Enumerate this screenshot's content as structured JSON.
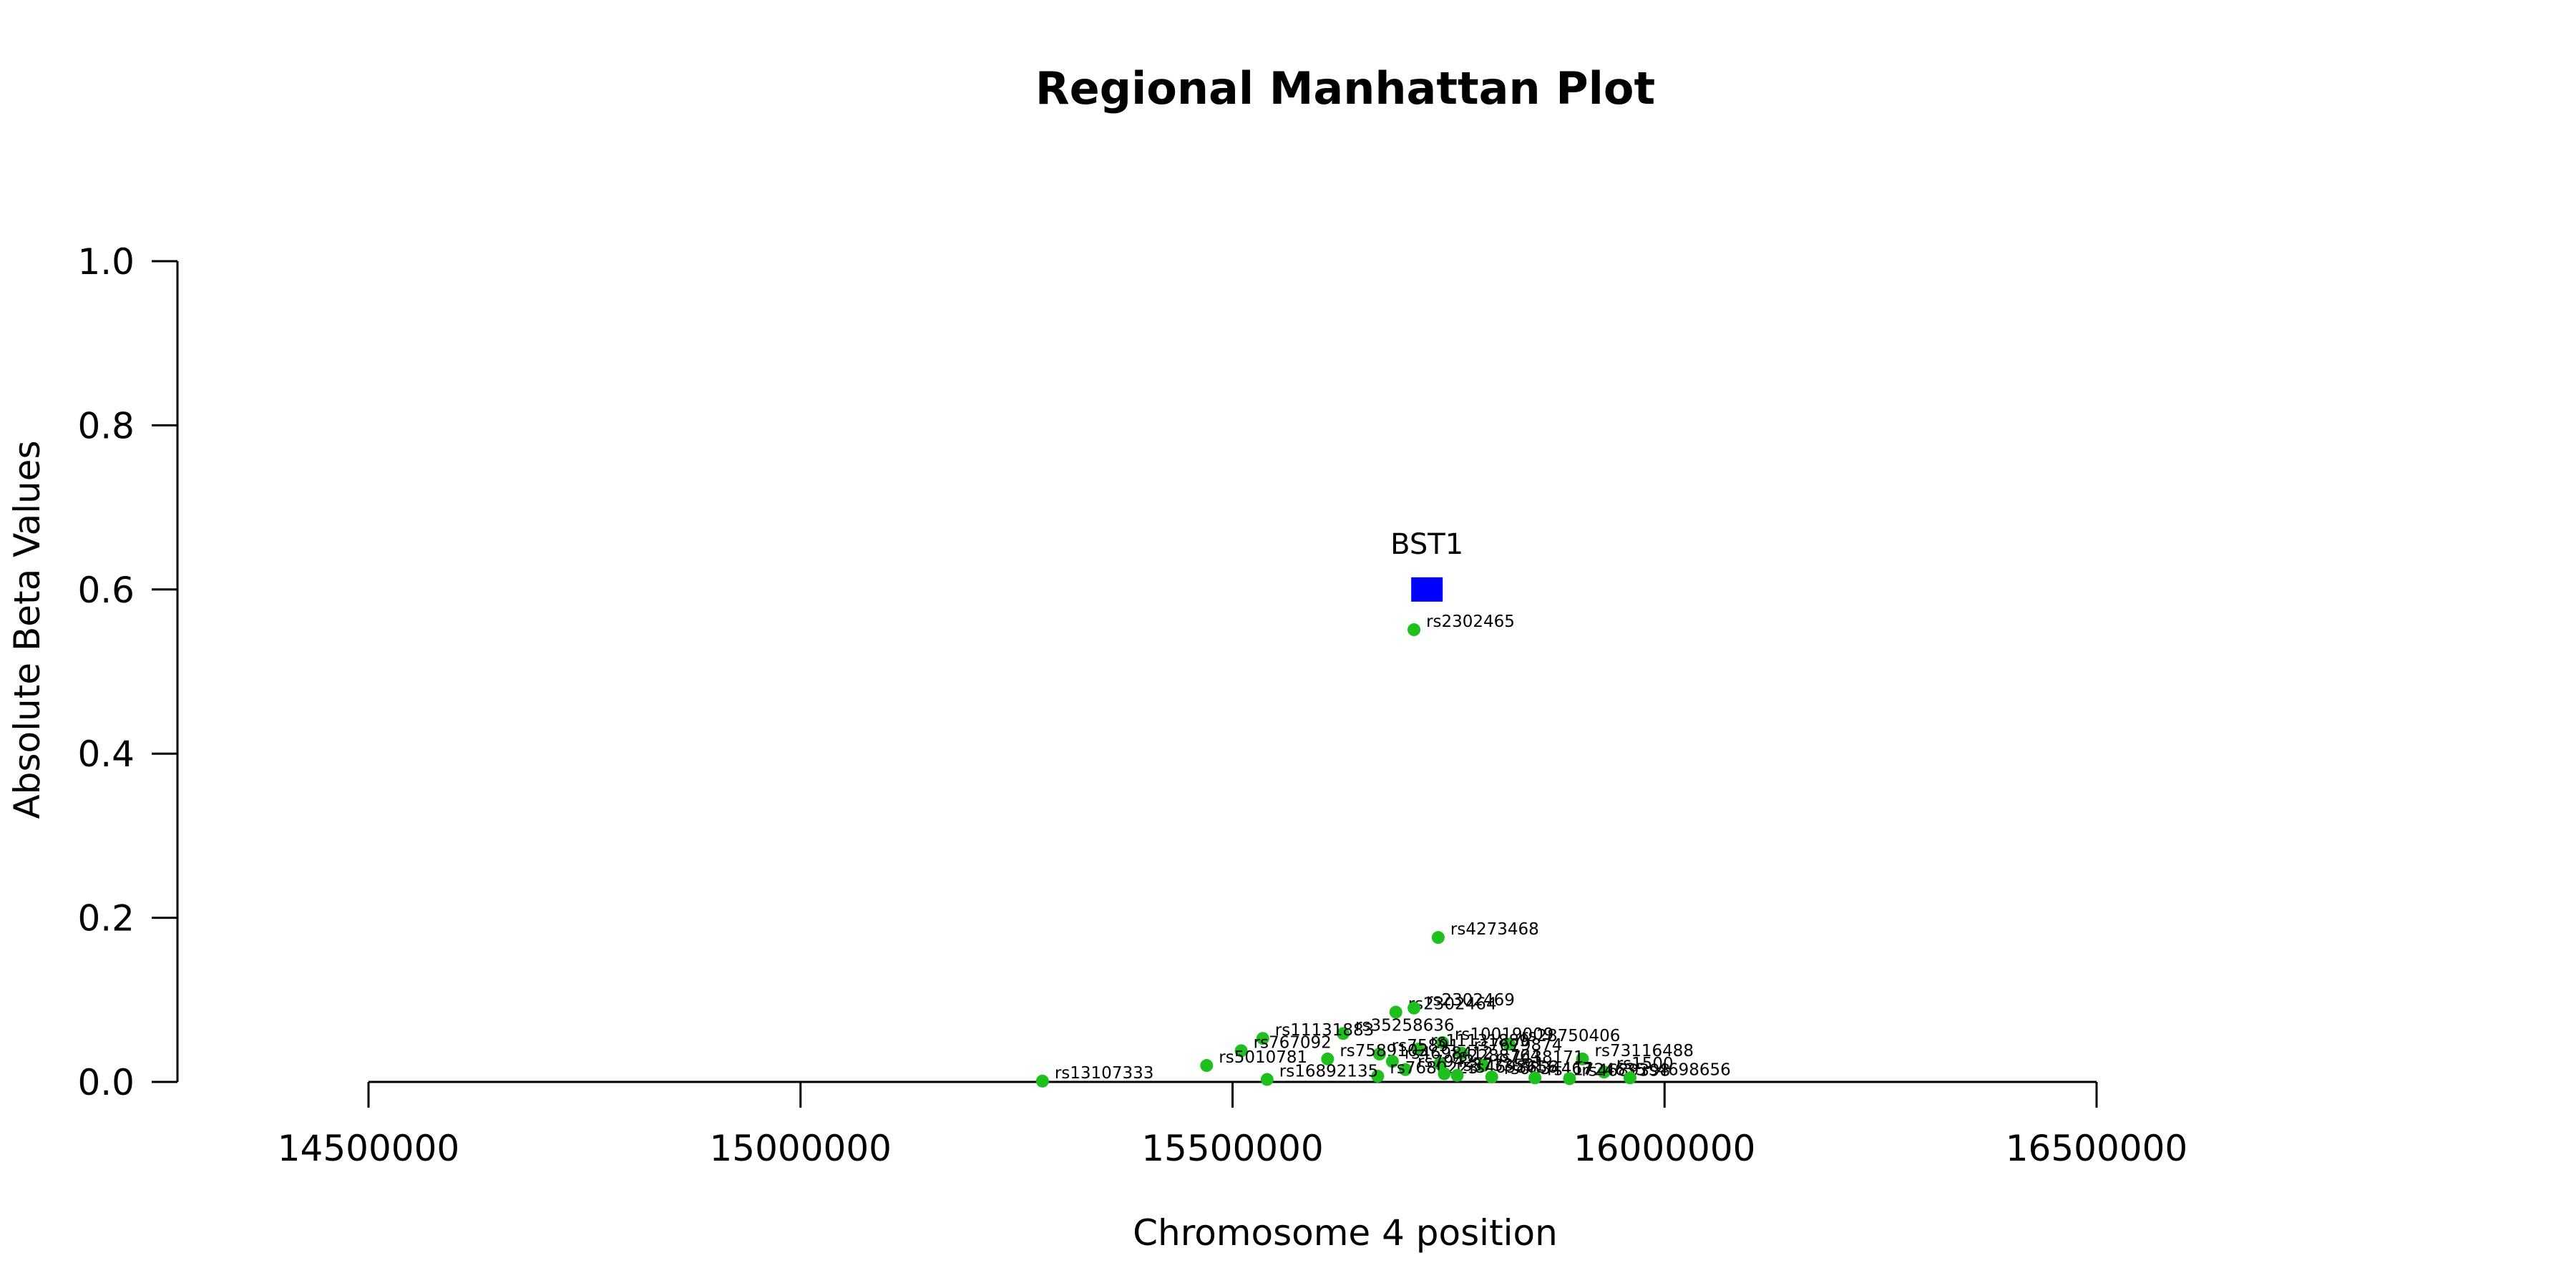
{
  "chart_data": {
    "type": "scatter",
    "title": "Regional Manhattan Plot",
    "xlabel": "Chromosome 4 position",
    "ylabel": "Absolute Beta Values",
    "xlim": [
      14500000,
      16500000
    ],
    "ylim": [
      0,
      1
    ],
    "x_ticks": [
      14500000,
      15000000,
      15500000,
      16000000,
      16500000
    ],
    "x_tick_labels": [
      "14500000",
      "15000000",
      "15500000",
      "16000000",
      "16500000"
    ],
    "y_ticks": [
      0,
      0.2,
      0.4,
      0.6,
      0.8,
      1.0
    ],
    "y_tick_labels": [
      "0.0",
      "0.2",
      "0.4",
      "0.6",
      "0.8",
      "1.0"
    ],
    "grid": false,
    "colors": {
      "snp": "#1ec01e",
      "gene": "#0000ff"
    },
    "gene": {
      "label": "BST1",
      "x": 15725000,
      "y": 0.6
    },
    "points": [
      {
        "x": 15710000,
        "y": 0.551,
        "label": "rs2302465"
      },
      {
        "x": 15738000,
        "y": 0.176,
        "label": "rs4273468"
      },
      {
        "x": 15689000,
        "y": 0.085,
        "label": "rs2302464"
      },
      {
        "x": 15710000,
        "y": 0.09,
        "label": "rs2302469"
      },
      {
        "x": 15628000,
        "y": 0.059,
        "label": "rs35258636"
      },
      {
        "x": 15535000,
        "y": 0.053,
        "label": "rs11131883"
      },
      {
        "x": 15743000,
        "y": 0.048,
        "label": "rs10019009"
      },
      {
        "x": 15820000,
        "y": 0.046,
        "label": "rs28750406"
      },
      {
        "x": 15510000,
        "y": 0.038,
        "label": "rs767092"
      },
      {
        "x": 15715000,
        "y": 0.04,
        "label": "rs11131889"
      },
      {
        "x": 15670000,
        "y": 0.034,
        "label": "rs75891"
      },
      {
        "x": 15765000,
        "y": 0.035,
        "label": "rs7679874"
      },
      {
        "x": 15905000,
        "y": 0.028,
        "label": "rs73116488"
      },
      {
        "x": 15610000,
        "y": 0.028,
        "label": "rs7589103"
      },
      {
        "x": 15470000,
        "y": 0.02,
        "label": "rs5010781"
      },
      {
        "x": 15685000,
        "y": 0.025,
        "label": "rs4698412"
      },
      {
        "x": 15740000,
        "y": 0.022,
        "label": "rs2288764"
      },
      {
        "x": 15790000,
        "y": 0.02,
        "label": "rs7438171"
      },
      {
        "x": 15930000,
        "y": 0.012,
        "label": "rs1500"
      },
      {
        "x": 15700000,
        "y": 0.015,
        "label": "rs7942"
      },
      {
        "x": 15668000,
        "y": 0.007,
        "label": "rs7680223"
      },
      {
        "x": 15745000,
        "y": 0.01,
        "label": "rs3733591"
      },
      {
        "x": 15760000,
        "y": 0.008,
        "label": "rs4698656"
      },
      {
        "x": 15800000,
        "y": 0.006,
        "label": "rs6834467"
      },
      {
        "x": 15850000,
        "y": 0.005,
        "label": "rs11724635"
      },
      {
        "x": 15890000,
        "y": 0.004,
        "label": "rs4689398"
      },
      {
        "x": 15960000,
        "y": 0.005,
        "label": "rs4698656"
      },
      {
        "x": 15540000,
        "y": 0.003,
        "label": "rs16892135"
      },
      {
        "x": 15280000,
        "y": 0.001,
        "label": "rs13107333"
      }
    ]
  }
}
